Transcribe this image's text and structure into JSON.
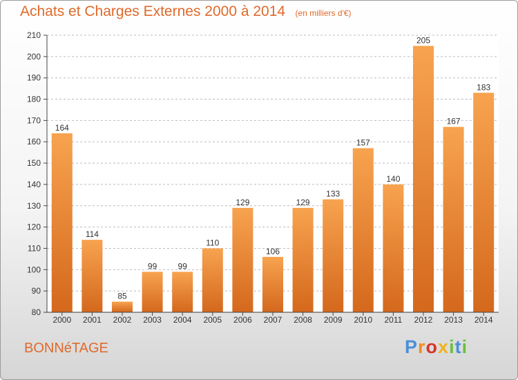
{
  "title": "Achats et Charges Externes 2000 à 2014",
  "unit_note": "(en milliers d'€)",
  "commune": "BONNéTAGE",
  "logo": {
    "text": "Proxiti",
    "letters": [
      "P",
      "r",
      "o",
      "x",
      "i",
      "t",
      "i"
    ]
  },
  "colors": {
    "bar_light": "#f7a34f",
    "bar_dark": "#d4681c",
    "accent": "#e0692a"
  },
  "chart_data": {
    "type": "bar",
    "title": "Achats et Charges Externes 2000 à 2014",
    "xlabel": "",
    "ylabel": "",
    "ylim": [
      80,
      210
    ],
    "yticks": [
      80,
      90,
      100,
      110,
      120,
      130,
      140,
      150,
      160,
      170,
      180,
      190,
      200,
      210
    ],
    "grid": "dashed horizontal",
    "categories": [
      "2000",
      "2001",
      "2002",
      "2003",
      "2004",
      "2005",
      "2006",
      "2007",
      "2008",
      "2009",
      "2010",
      "2011",
      "2012",
      "2013",
      "2014"
    ],
    "values": [
      164,
      114,
      85,
      99,
      99,
      110,
      129,
      106,
      129,
      133,
      157,
      140,
      205,
      167,
      183
    ]
  }
}
